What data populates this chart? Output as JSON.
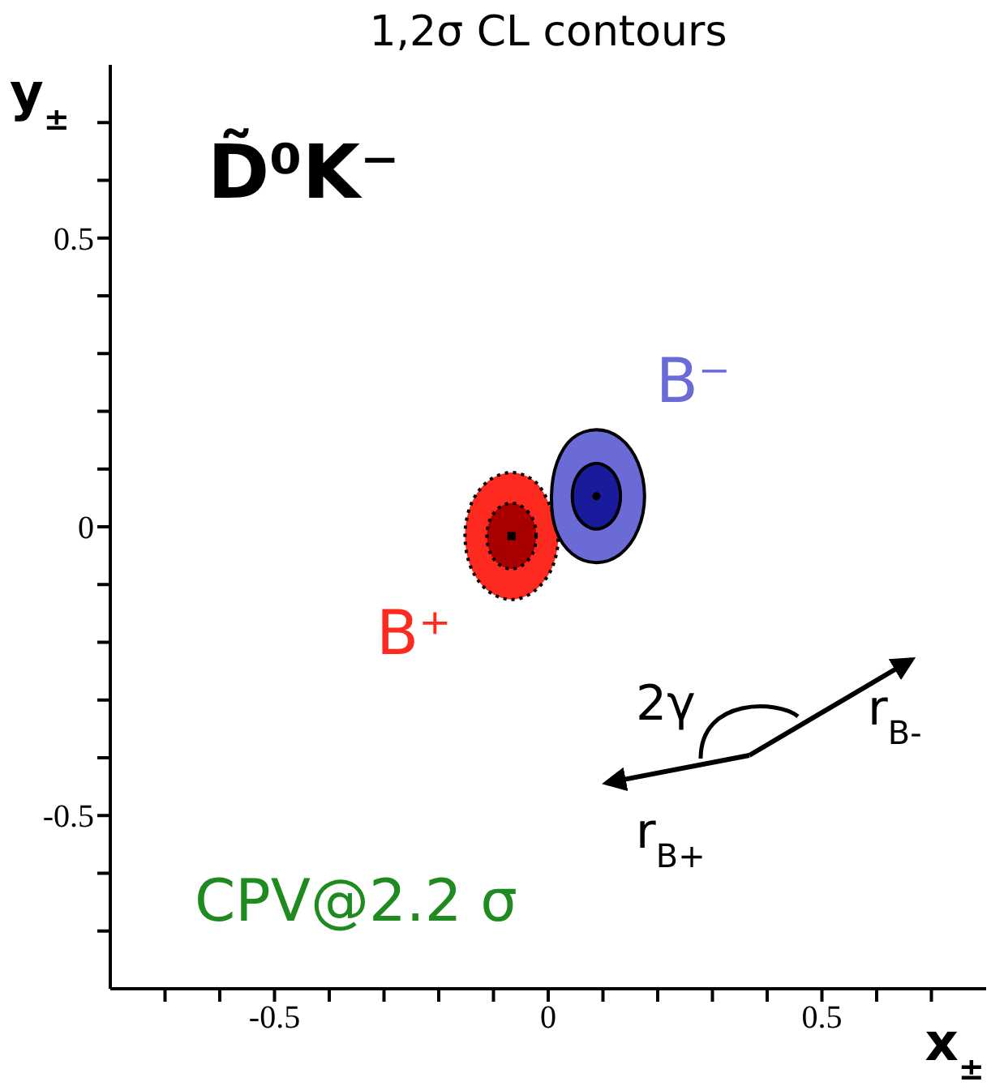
{
  "chart_data": {
    "type": "scatter",
    "title": "1,2σ CL contours",
    "xlabel": "x$_{±}$",
    "ylabel": "y$_{±}$",
    "xlim": [
      -0.8,
      0.8
    ],
    "ylim": [
      -0.8,
      0.8
    ],
    "xticks": [
      {
        "value": -0.7,
        "label": null
      },
      {
        "value": -0.6,
        "label": null
      },
      -0.5,
      {
        "value": -0.4,
        "label": null
      },
      {
        "value": -0.3,
        "label": null
      },
      {
        "value": -0.2,
        "label": null
      },
      {
        "value": -0.1,
        "label": null
      },
      0,
      {
        "value": 0.1,
        "label": null
      },
      {
        "value": 0.2,
        "label": null
      },
      {
        "value": 0.3,
        "label": null
      },
      {
        "value": 0.4,
        "label": null
      },
      0.5,
      {
        "value": 0.6,
        "label": null
      },
      {
        "value": 0.7,
        "label": null
      }
    ],
    "yticks": [
      {
        "value": -0.7,
        "label": null
      },
      {
        "value": -0.6,
        "label": null
      },
      -0.5,
      {
        "value": -0.4,
        "label": null
      },
      {
        "value": -0.3,
        "label": null
      },
      {
        "value": -0.2,
        "label": null
      },
      {
        "value": -0.1,
        "label": null
      },
      0,
      {
        "value": 0.1,
        "label": null
      },
      {
        "value": 0.2,
        "label": null
      },
      {
        "value": 0.3,
        "label": null
      },
      {
        "value": 0.4,
        "label": null
      },
      0.5,
      {
        "value": 0.6,
        "label": null
      },
      {
        "value": 0.7,
        "label": null
      }
    ],
    "series": [
      {
        "type": "area",
        "name": "B⁺",
        "color": "#ff2a1f",
        "line_style": "dotted",
        "x": [
          0.018,
          0.002,
          -0.025,
          -0.067,
          -0.11,
          -0.141,
          -0.152,
          -0.141,
          -0.11,
          -0.067,
          -0.025,
          0.007,
          0.018
        ],
        "values": [
          -0.016,
          0.039,
          0.079,
          0.094,
          0.079,
          0.039,
          -0.016,
          -0.071,
          -0.111,
          -0.126,
          -0.111,
          -0.071,
          -0.016
        ]
      },
      {
        "type": "area",
        "color": "#a80000",
        "line_style": "dotted",
        "x": [
          -0.022,
          -0.028,
          -0.045,
          -0.067,
          -0.09,
          -0.106,
          -0.112,
          -0.106,
          -0.09,
          -0.067,
          -0.045,
          -0.028,
          -0.022
        ],
        "values": [
          -0.016,
          0.013,
          0.033,
          0.041,
          0.033,
          0.013,
          -0.016,
          -0.045,
          -0.065,
          -0.073,
          -0.065,
          -0.045,
          -0.016
        ]
      },
      {
        "type": "area",
        "name": "B⁻",
        "color": "#6b6bd8",
        "line_style": "solid",
        "x": [
          0.176,
          0.164,
          0.132,
          0.088,
          0.044,
          0.016,
          0.006,
          0.014,
          0.044,
          0.088,
          0.132,
          0.164,
          0.176
        ],
        "values": [
          0.053,
          0.111,
          0.153,
          0.168,
          0.153,
          0.111,
          0.053,
          -0.005,
          -0.047,
          -0.062,
          -0.047,
          -0.005,
          0.053
        ]
      },
      {
        "type": "area",
        "color": "#1a1a9c",
        "line_style": "solid",
        "x": [
          0.132,
          0.126,
          0.11,
          0.088,
          0.066,
          0.05,
          0.044,
          0.05,
          0.066,
          0.088,
          0.11,
          0.126,
          0.132
        ],
        "values": [
          0.053,
          0.082,
          0.102,
          0.11,
          0.102,
          0.082,
          0.053,
          0.024,
          0.004,
          -0.004,
          0.004,
          0.024,
          0.053
        ]
      },
      {
        "color": "#000000",
        "marker": "square",
        "x": [
          -0.067
        ],
        "values": [
          -0.016
        ]
      },
      {
        "color": "#000000",
        "marker": "circle",
        "x": [
          0.088
        ],
        "values": [
          0.053
        ]
      }
    ],
    "annotations": [
      "D̃⁰K⁻",
      "CPV@2.2 σ",
      "2γ",
      "r$_{B-}$",
      "r$_{B+}$"
    ]
  }
}
